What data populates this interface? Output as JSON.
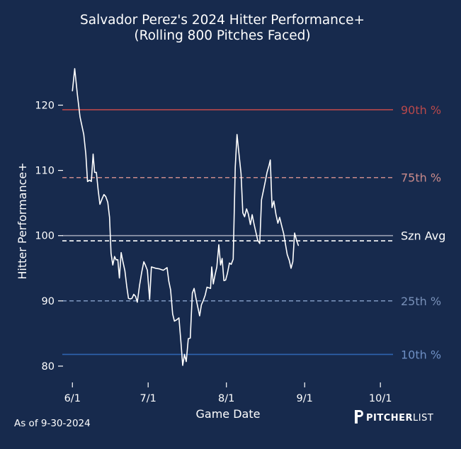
{
  "chart_data": {
    "type": "line",
    "title": "Salvador Perez's 2024 Hitter Performance+",
    "subtitle": "(Rolling 800 Pitches Faced)",
    "xlabel": "Game Date",
    "ylabel": "Hitter Performance+",
    "ylim": [
      77.5,
      127
    ],
    "yticks": [
      80,
      90,
      100,
      110,
      120
    ],
    "x_ticks": [
      {
        "label": "6/1",
        "day": 0
      },
      {
        "label": "7/1",
        "day": 30
      },
      {
        "label": "8/1",
        "day": 61
      },
      {
        "label": "9/1",
        "day": 92
      },
      {
        "label": "10/1",
        "day": 122
      }
    ],
    "x_unit": "days since 6/1",
    "xlim": [
      -4,
      127
    ],
    "series": [
      {
        "name": "Salvador Perez",
        "color": "#ffffff",
        "points": [
          [
            0,
            122.2
          ],
          [
            0.9,
            125.6
          ],
          [
            2,
            121.5
          ],
          [
            3,
            118.2
          ],
          [
            4.5,
            115.5
          ],
          [
            5.3,
            112.5
          ],
          [
            6,
            108.3
          ],
          [
            6.8,
            108.5
          ],
          [
            7.5,
            108.3
          ],
          [
            8.2,
            112.5
          ],
          [
            8.8,
            109.7
          ],
          [
            9.5,
            109.7
          ],
          [
            10.2,
            107.0
          ],
          [
            10.9,
            104.8
          ],
          [
            11.8,
            105.7
          ],
          [
            12.5,
            106.3
          ],
          [
            13.2,
            106.0
          ],
          [
            14,
            105.1
          ],
          [
            14.7,
            102.8
          ],
          [
            15.3,
            97.3
          ],
          [
            16,
            95.5
          ],
          [
            16.7,
            96.8
          ],
          [
            17.3,
            96.3
          ],
          [
            18,
            96.3
          ],
          [
            18.6,
            93.5
          ],
          [
            19.3,
            97.4
          ],
          [
            20,
            96.0
          ],
          [
            20.8,
            94.6
          ],
          [
            21.5,
            92.3
          ],
          [
            22.2,
            90.4
          ],
          [
            22.9,
            90.3
          ],
          [
            23.6,
            90.4
          ],
          [
            24.3,
            91.0
          ],
          [
            25,
            90.7
          ],
          [
            25.7,
            89.8
          ],
          [
            26.6,
            92.4
          ],
          [
            27.5,
            94.5
          ],
          [
            28.3,
            96.0
          ],
          [
            29,
            95.4
          ],
          [
            29.7,
            94.7
          ],
          [
            30.6,
            90.2
          ],
          [
            31.3,
            95.2
          ],
          [
            33,
            95.0
          ],
          [
            34.5,
            94.9
          ],
          [
            36,
            94.7
          ],
          [
            37.5,
            95.1
          ],
          [
            38.2,
            93.0
          ],
          [
            38.9,
            91.7
          ],
          [
            39.7,
            88.0
          ],
          [
            40.4,
            86.9
          ],
          [
            41.3,
            87.1
          ],
          [
            42.2,
            87.4
          ],
          [
            43,
            83.7
          ],
          [
            43.7,
            80.1
          ],
          [
            44.4,
            81.8
          ],
          [
            45.1,
            80.7
          ],
          [
            45.9,
            84.2
          ],
          [
            46.7,
            84.3
          ],
          [
            47.5,
            91.2
          ],
          [
            48.2,
            91.9
          ],
          [
            49,
            90.3
          ],
          [
            49.7,
            89.0
          ],
          [
            50.4,
            87.7
          ],
          [
            51.1,
            89.4
          ],
          [
            51.8,
            90.0
          ],
          [
            52.6,
            90.9
          ],
          [
            53.3,
            92.1
          ],
          [
            54,
            92.0
          ],
          [
            54.7,
            91.9
          ],
          [
            55.2,
            95.2
          ],
          [
            55.8,
            92.6
          ],
          [
            56.5,
            94.0
          ],
          [
            57.2,
            95.2
          ],
          [
            58,
            98.6
          ],
          [
            58.7,
            95.5
          ],
          [
            59.3,
            96.5
          ],
          [
            60,
            93.1
          ],
          [
            60.7,
            93.2
          ],
          [
            61.4,
            94.2
          ],
          [
            62.2,
            95.8
          ],
          [
            62.9,
            95.6
          ],
          [
            63.7,
            96.4
          ],
          [
            64.5,
            110.5
          ],
          [
            65.2,
            115.5
          ],
          [
            66,
            112.5
          ],
          [
            66.8,
            109.5
          ],
          [
            67.5,
            103.5
          ],
          [
            68.2,
            102.9
          ],
          [
            69,
            104.1
          ],
          [
            69.7,
            103.3
          ],
          [
            70.5,
            101.7
          ],
          [
            71.2,
            103.2
          ],
          [
            72,
            101.7
          ],
          [
            72.7,
            100.5
          ],
          [
            73.4,
            99.3
          ],
          [
            74.2,
            98.8
          ],
          [
            74.9,
            105.5
          ],
          [
            75.6,
            106.8
          ],
          [
            76.4,
            108.3
          ],
          [
            77.1,
            109.7
          ],
          [
            77.9,
            110.8
          ],
          [
            78.4,
            111.6
          ],
          [
            79.1,
            104.3
          ],
          [
            79.8,
            105.3
          ],
          [
            80.6,
            103.3
          ],
          [
            81.4,
            101.9
          ],
          [
            82.1,
            102.8
          ],
          [
            82.9,
            101.5
          ],
          [
            83.7,
            100.3
          ],
          [
            84.4,
            98.7
          ],
          [
            85.1,
            97.1
          ],
          [
            85.9,
            96.2
          ],
          [
            86.6,
            95.0
          ],
          [
            87.3,
            96.0
          ],
          [
            88,
            100.4
          ],
          [
            88.8,
            99.3
          ],
          [
            89.5,
            98.5
          ]
        ]
      }
    ],
    "reference_lines": [
      {
        "label": "90th %",
        "value": 119.3,
        "color": "#b8484b",
        "style": "solid"
      },
      {
        "label": "75th %",
        "value": 108.9,
        "color": "#c98a8a",
        "style": "dashed"
      },
      {
        "label": "Szn Avg",
        "value": 100.0,
        "color": "#9aa1b3",
        "style": "solid",
        "label_color": "#ffffff"
      },
      {
        "label": "",
        "value": 99.2,
        "color": "#ffffff",
        "style": "dashed"
      },
      {
        "label": "25th %",
        "value": 90.0,
        "color": "#7890b8",
        "style": "dashed"
      },
      {
        "label": "10th %",
        "value": 81.8,
        "color": "#2f63b0",
        "style": "solid",
        "label_color": "#6e8fc4"
      }
    ]
  },
  "footer": {
    "note": "As of 9-30-2024",
    "brand_prefix": "PITCHER",
    "brand_suffix": "LIST"
  },
  "colors": {
    "background": "#172a4d",
    "text": "#ffffff"
  }
}
